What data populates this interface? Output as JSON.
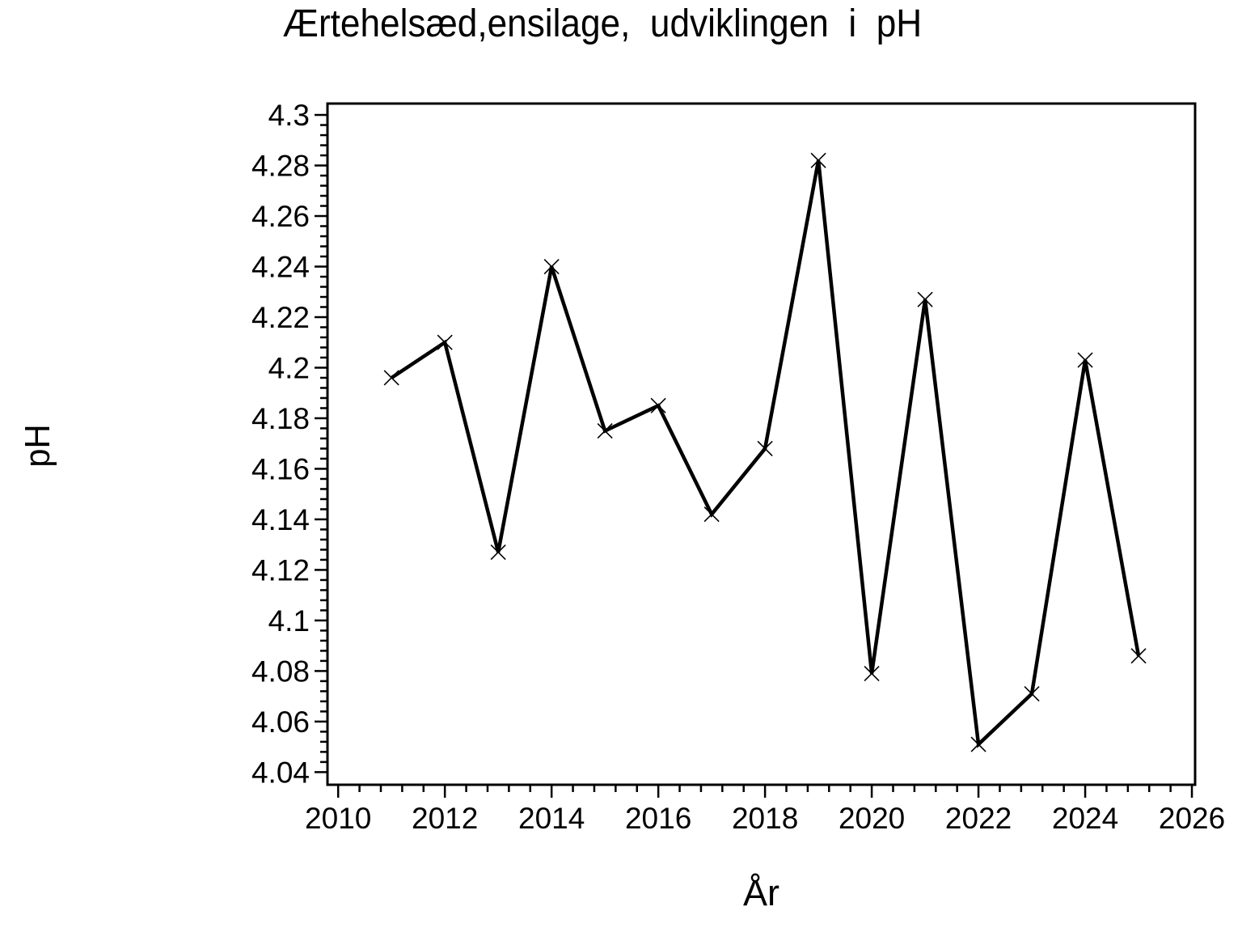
{
  "figure": {
    "background": "#ffffff",
    "ink_color": "#000000"
  },
  "chart_data": {
    "type": "line",
    "title": "Ærtehelsæd,ensilage,  udviklingen  i  pH",
    "xlabel": "År",
    "ylabel": "pH",
    "x": [
      2011,
      2012,
      2013,
      2014,
      2015,
      2016,
      2017,
      2018,
      2019,
      2020,
      2021,
      2022,
      2023,
      2024,
      2025
    ],
    "y": [
      4.196,
      4.21,
      4.127,
      4.24,
      4.175,
      4.185,
      4.142,
      4.168,
      4.282,
      4.079,
      4.227,
      4.051,
      4.071,
      4.203,
      4.086
    ],
    "marker": "x",
    "line_color": "#000000",
    "marker_color": "#000000",
    "xlim": [
      2009.8,
      2026.06
    ],
    "ylim": [
      4.035,
      4.3045
    ],
    "x_tick_labels": [
      "2010",
      "2012",
      "2014",
      "2016",
      "2018",
      "2020",
      "2022",
      "2024",
      "2026"
    ],
    "x_tick_values": [
      2010,
      2012,
      2014,
      2016,
      2018,
      2020,
      2022,
      2024,
      2026
    ],
    "y_tick_labels": [
      "4.04",
      "4.06",
      "4.08",
      "4.1",
      "4.12",
      "4.14",
      "4.16",
      "4.18",
      "4.2",
      "4.22",
      "4.24",
      "4.26",
      "4.28",
      "4.3"
    ],
    "y_tick_values": [
      4.04,
      4.06,
      4.08,
      4.1,
      4.12,
      4.14,
      4.16,
      4.18,
      4.2,
      4.22,
      4.24,
      4.26,
      4.28,
      4.3
    ],
    "x_minor_step": 0.4,
    "y_minor_step": 0.004,
    "grid": false,
    "legend_position": "none"
  }
}
